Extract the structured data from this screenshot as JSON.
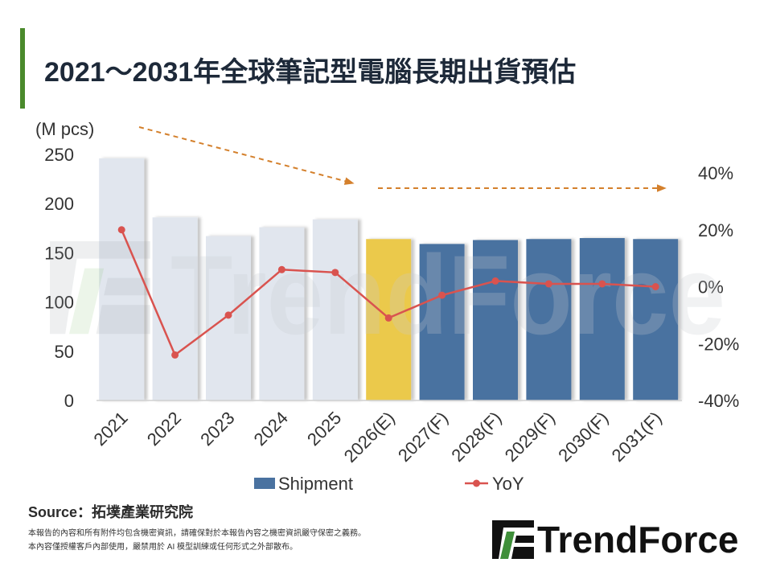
{
  "accent_color": "#4a8a2c",
  "chart_data": {
    "type": "bar",
    "title": "2021～2031年全球筆記型電腦長期出貨預估",
    "categories": [
      "2021",
      "2022",
      "2023",
      "2024",
      "2025",
      "2026(E)",
      "2027(F)",
      "2028(F)",
      "2029(F)",
      "2030(F)",
      "2031(F)"
    ],
    "series": [
      {
        "name": "Shipment",
        "type": "bar",
        "values": [
          246,
          186,
          167,
          176,
          184,
          164,
          159,
          163,
          164,
          165,
          164
        ],
        "colors": [
          "#e1e6ee",
          "#e1e6ee",
          "#e1e6ee",
          "#e1e6ee",
          "#e1e6ee",
          "#ebc94b",
          "#4a72a0",
          "#4a72a0",
          "#4a72a0",
          "#4a72a0",
          "#4a72a0"
        ],
        "legend_color": "#4a72a0"
      },
      {
        "name": "YoY",
        "type": "line",
        "values": [
          20,
          -24,
          -10,
          6,
          5,
          -11,
          -3,
          2,
          1,
          1,
          0
        ],
        "color": "#d9534f"
      }
    ],
    "ylabel": "(M pcs)",
    "ylim": [
      0,
      250
    ],
    "yticks": [
      0,
      50,
      100,
      150,
      200,
      250
    ],
    "y2lim": [
      -40,
      40
    ],
    "y2ticks": [
      "-40%",
      "-20%",
      "0%",
      "20%",
      "40%"
    ],
    "grid": false,
    "legend": "bottom",
    "annotation_arrow_color": "#d4802c"
  },
  "source": "Source：拓墣產業研究院",
  "disclaimer": [
    "本報告的內容和所有附件均包含機密資訊，請確保對於本報告內容之機密資訊嚴守保密之義務。",
    "本內容僅授權客戶內部使用，嚴禁用於 AI 模型訓練或任何形式之外部散布。"
  ],
  "logo_text": "TrendForce",
  "watermark": "TrendForce"
}
